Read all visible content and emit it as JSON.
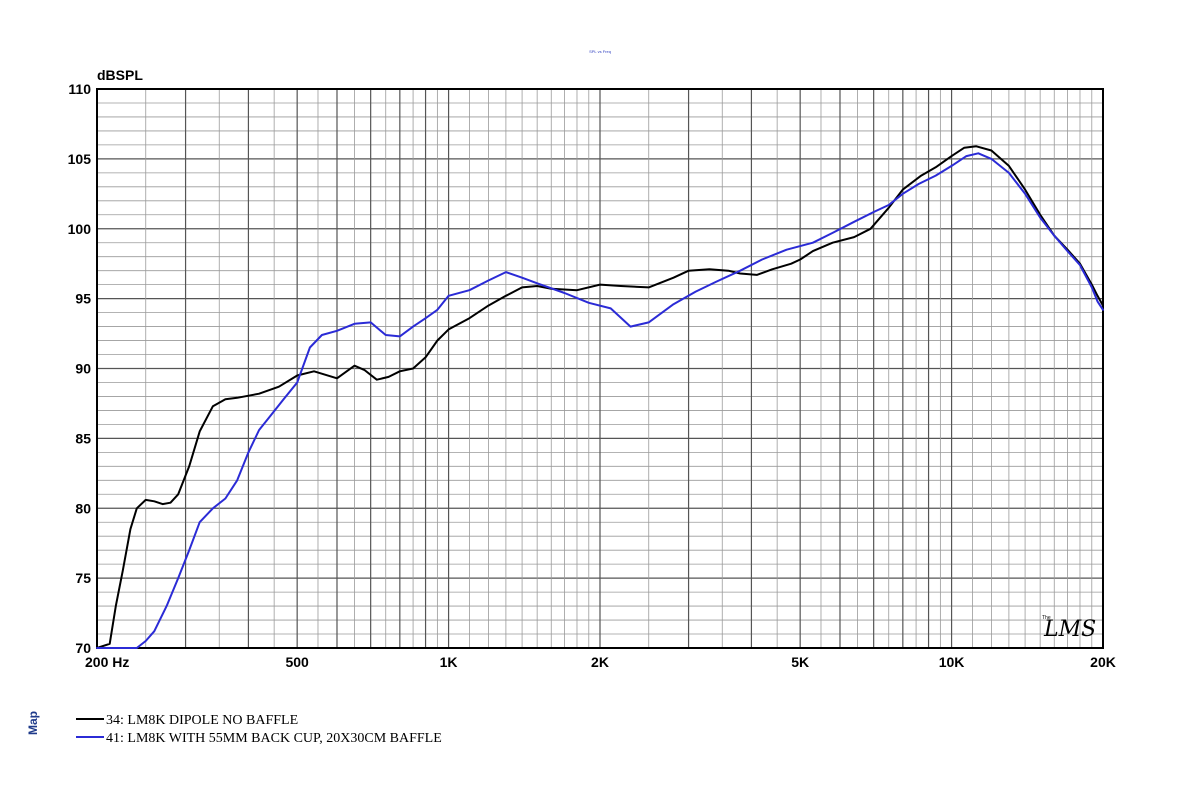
{
  "header": {
    "tiny_caption": "SPL vs Freq"
  },
  "side_label": "Map",
  "logo": {
    "text": "LMS",
    "prefix": "The"
  },
  "chart_data": {
    "type": "line",
    "title": "",
    "xlabel": "",
    "ylabel": "dBSPL",
    "x_scale": "log",
    "xlim": [
      200,
      20000
    ],
    "ylim": [
      70,
      110
    ],
    "grid": true,
    "y_ticks": [
      "110",
      "105",
      "100",
      "95",
      "90",
      "85",
      "80",
      "75",
      "70"
    ],
    "x_tick_labels": [
      {
        "value": 200,
        "label": "200  Hz"
      },
      {
        "value": 500,
        "label": "500"
      },
      {
        "value": 1000,
        "label": "1K"
      },
      {
        "value": 2000,
        "label": "2K"
      },
      {
        "value": 5000,
        "label": "5K"
      },
      {
        "value": 10000,
        "label": "10K"
      },
      {
        "value": 20000,
        "label": "20K"
      }
    ],
    "legend_position": "bottom-left",
    "series": [
      {
        "name": "34: LM8K DIPOLE NO BAFFLE",
        "color": "#000000",
        "points": [
          [
            200,
            70
          ],
          [
            212,
            70.3
          ],
          [
            218,
            73
          ],
          [
            225,
            75.5
          ],
          [
            233,
            78.5
          ],
          [
            240,
            80
          ],
          [
            250,
            80.6
          ],
          [
            260,
            80.5
          ],
          [
            270,
            80.3
          ],
          [
            280,
            80.4
          ],
          [
            290,
            81
          ],
          [
            305,
            83
          ],
          [
            320,
            85.5
          ],
          [
            340,
            87.3
          ],
          [
            360,
            87.8
          ],
          [
            380,
            87.9
          ],
          [
            420,
            88.2
          ],
          [
            460,
            88.7
          ],
          [
            500,
            89.5
          ],
          [
            540,
            89.8
          ],
          [
            600,
            89.3
          ],
          [
            650,
            90.2
          ],
          [
            680,
            89.9
          ],
          [
            720,
            89.2
          ],
          [
            760,
            89.4
          ],
          [
            800,
            89.8
          ],
          [
            850,
            90.0
          ],
          [
            900,
            90.8
          ],
          [
            950,
            92.0
          ],
          [
            1000,
            92.8
          ],
          [
            1100,
            93.6
          ],
          [
            1200,
            94.5
          ],
          [
            1300,
            95.2
          ],
          [
            1400,
            95.8
          ],
          [
            1500,
            95.9
          ],
          [
            1600,
            95.7
          ],
          [
            1800,
            95.6
          ],
          [
            2000,
            96.0
          ],
          [
            2200,
            95.9
          ],
          [
            2500,
            95.8
          ],
          [
            2800,
            96.5
          ],
          [
            3000,
            97.0
          ],
          [
            3300,
            97.1
          ],
          [
            3600,
            97.0
          ],
          [
            3800,
            96.8
          ],
          [
            4100,
            96.7
          ],
          [
            4400,
            97.1
          ],
          [
            4800,
            97.5
          ],
          [
            5000,
            97.8
          ],
          [
            5300,
            98.4
          ],
          [
            5800,
            99.0
          ],
          [
            6400,
            99.4
          ],
          [
            6900,
            100.0
          ],
          [
            7500,
            101.5
          ],
          [
            8000,
            102.8
          ],
          [
            8700,
            103.8
          ],
          [
            9300,
            104.4
          ],
          [
            10000,
            105.2
          ],
          [
            10600,
            105.8
          ],
          [
            11200,
            105.9
          ],
          [
            12000,
            105.6
          ],
          [
            13000,
            104.5
          ],
          [
            14000,
            102.8
          ],
          [
            15000,
            101.0
          ],
          [
            16000,
            99.5
          ],
          [
            17000,
            98.5
          ],
          [
            18000,
            97.5
          ],
          [
            19000,
            96.0
          ],
          [
            19500,
            95.2
          ],
          [
            20000,
            94.5
          ]
        ]
      },
      {
        "name": "41: LM8K WITH 55MM BACK CUP, 20X30CM BAFFLE",
        "color": "#2b2bd6",
        "points": [
          [
            200,
            70
          ],
          [
            240,
            70
          ],
          [
            250,
            70.5
          ],
          [
            260,
            71.2
          ],
          [
            275,
            73
          ],
          [
            290,
            75
          ],
          [
            305,
            77
          ],
          [
            320,
            79
          ],
          [
            340,
            80.0
          ],
          [
            360,
            80.7
          ],
          [
            380,
            82
          ],
          [
            400,
            84
          ],
          [
            420,
            85.6
          ],
          [
            440,
            86.5
          ],
          [
            470,
            87.8
          ],
          [
            500,
            89.0
          ],
          [
            530,
            91.5
          ],
          [
            560,
            92.4
          ],
          [
            600,
            92.7
          ],
          [
            650,
            93.2
          ],
          [
            700,
            93.3
          ],
          [
            750,
            92.4
          ],
          [
            800,
            92.3
          ],
          [
            850,
            93.0
          ],
          [
            900,
            93.6
          ],
          [
            950,
            94.2
          ],
          [
            1000,
            95.2
          ],
          [
            1100,
            95.6
          ],
          [
            1200,
            96.3
          ],
          [
            1300,
            96.9
          ],
          [
            1400,
            96.5
          ],
          [
            1500,
            96.1
          ],
          [
            1700,
            95.4
          ],
          [
            1900,
            94.7
          ],
          [
            2100,
            94.3
          ],
          [
            2300,
            93.0
          ],
          [
            2500,
            93.3
          ],
          [
            2800,
            94.6
          ],
          [
            3100,
            95.5
          ],
          [
            3400,
            96.2
          ],
          [
            3800,
            97.0
          ],
          [
            4200,
            97.8
          ],
          [
            4700,
            98.5
          ],
          [
            5300,
            99.0
          ],
          [
            5800,
            99.7
          ],
          [
            6400,
            100.5
          ],
          [
            7000,
            101.2
          ],
          [
            7500,
            101.7
          ],
          [
            8000,
            102.5
          ],
          [
            8600,
            103.2
          ],
          [
            9300,
            103.8
          ],
          [
            10000,
            104.5
          ],
          [
            10700,
            105.2
          ],
          [
            11300,
            105.4
          ],
          [
            12000,
            105.0
          ],
          [
            13000,
            104.0
          ],
          [
            14000,
            102.5
          ],
          [
            15000,
            100.8
          ],
          [
            16000,
            99.5
          ],
          [
            17000,
            98.4
          ],
          [
            18000,
            97.4
          ],
          [
            19000,
            95.8
          ],
          [
            19500,
            94.8
          ],
          [
            20000,
            94.2
          ]
        ]
      }
    ]
  }
}
